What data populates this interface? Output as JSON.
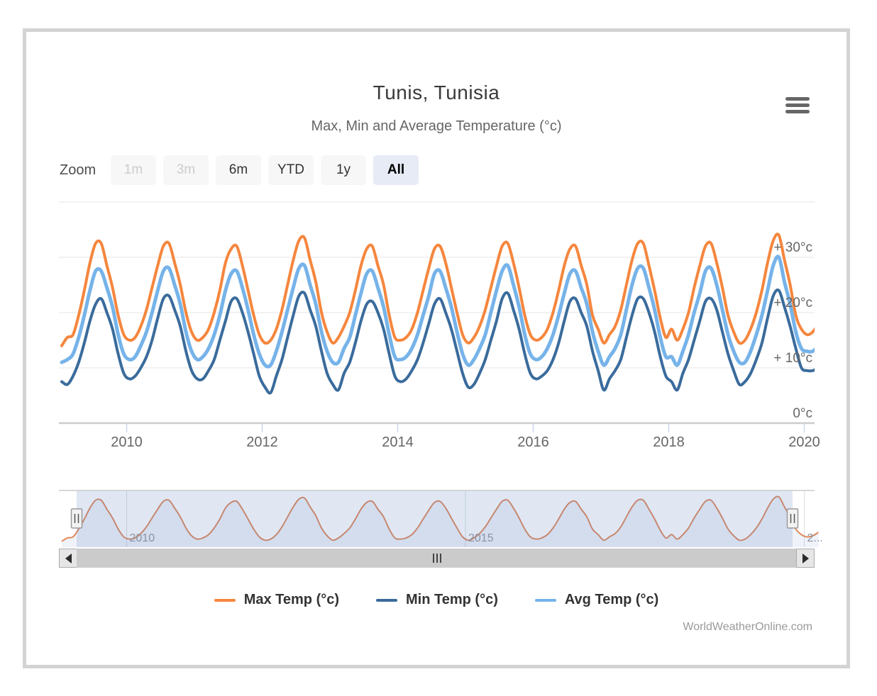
{
  "header": {
    "title": "Tunis, Tunisia",
    "subtitle": "Max, Min and Average Temperature (°c)"
  },
  "menu_icon": "hamburger-menu-icon",
  "toolbar": {
    "label": "Zoom",
    "buttons": [
      {
        "label": "1m",
        "state": "disabled"
      },
      {
        "label": "3m",
        "state": "disabled"
      },
      {
        "label": "6m",
        "state": "normal"
      },
      {
        "label": "YTD",
        "state": "normal"
      },
      {
        "label": "1y",
        "state": "normal"
      },
      {
        "label": "All",
        "state": "active"
      }
    ]
  },
  "chart_data": {
    "type": "line",
    "title": "Tunis, Tunisia",
    "subtitle": "Max, Min and Average Temperature (°c)",
    "x_start_year": 2009,
    "x_frequency": "monthly",
    "x_tick_years": [
      2010,
      2012,
      2014,
      2016,
      2018,
      2020
    ],
    "ylim": [
      0,
      40
    ],
    "yticks": [
      {
        "value": 0,
        "label": "0°c"
      },
      {
        "value": 10,
        "label": "+ 10°c"
      },
      {
        "value": 20,
        "label": "+ 20°c"
      },
      {
        "value": 30,
        "label": "+ 30°c"
      },
      {
        "value": 40,
        "label": ""
      }
    ],
    "grid": true,
    "legend_position": "bottom",
    "colors": {
      "max": "#f5863d",
      "min": "#3a6b9c",
      "avg": "#76b3e9",
      "navigator_line": "#e0875a"
    },
    "series": [
      {
        "name": "Max Temp (°c)",
        "color": "#f5863d",
        "width": 4,
        "values": [
          14,
          15.5,
          16,
          19.5,
          24,
          29,
          32.5,
          32.5,
          28.5,
          24.5,
          19.5,
          16,
          15,
          15.5,
          17.5,
          20.5,
          24.5,
          28.5,
          32,
          32.5,
          29,
          25,
          20,
          16.5,
          15,
          15.5,
          17,
          20,
          24,
          29,
          31.5,
          32,
          28.5,
          24,
          19.5,
          16,
          14.5,
          15,
          17,
          20.5,
          25,
          29.5,
          33,
          33.5,
          29.5,
          25.5,
          20,
          16.5,
          14.5,
          15.5,
          17.5,
          20,
          24,
          28.5,
          31.5,
          32,
          28.5,
          25,
          19.5,
          15.5,
          15,
          15.5,
          17,
          20,
          24,
          28,
          31.5,
          32,
          29,
          24.5,
          20,
          16,
          14.5,
          15.5,
          17.5,
          20.5,
          24.5,
          28.5,
          32,
          32.5,
          29,
          24.5,
          19.5,
          16,
          15,
          15.5,
          17,
          20,
          24,
          28.5,
          31.5,
          32,
          28.5,
          25,
          19.5,
          17,
          14.5,
          16,
          17.5,
          20.5,
          25,
          29.5,
          32.5,
          32.5,
          28.5,
          24,
          19,
          15.5,
          17,
          15,
          17,
          20,
          24.5,
          28.5,
          32,
          32.5,
          29,
          24.5,
          19.5,
          16.5,
          14.5,
          15,
          17,
          20,
          24,
          29,
          33,
          34,
          29.5,
          25,
          19.5,
          17,
          16,
          16.5,
          18
        ]
      },
      {
        "name": "Min Temp (°c)",
        "color": "#3a6b9c",
        "width": 4,
        "values": [
          7.5,
          7,
          8.5,
          11,
          14.5,
          18.5,
          21.5,
          22.5,
          20,
          17,
          12.5,
          9,
          8,
          8.5,
          10,
          12,
          15,
          19,
          22.5,
          23,
          20.5,
          17.5,
          13,
          9.5,
          8,
          8,
          9.5,
          11.5,
          15,
          18.5,
          22,
          22.5,
          20,
          16.5,
          12.5,
          8.5,
          6.5,
          5.5,
          8.5,
          11.5,
          15.5,
          19.5,
          23,
          23.5,
          20.5,
          17.5,
          13,
          9,
          7,
          6,
          9,
          11,
          14.5,
          18.5,
          21.5,
          22,
          20,
          17,
          12.5,
          8.5,
          7.5,
          8,
          9.5,
          11.5,
          14.5,
          18,
          21.5,
          22.5,
          20,
          17,
          13,
          9,
          6.5,
          7,
          9,
          11.5,
          15,
          18.5,
          22.5,
          23.5,
          20.5,
          17,
          12.5,
          9,
          8,
          8.5,
          9.5,
          11.5,
          14.5,
          18.5,
          22,
          22.5,
          20,
          17.5,
          13,
          9.5,
          6,
          8,
          9.5,
          11.5,
          15.5,
          19.5,
          22.5,
          22.5,
          20,
          16.5,
          12,
          8.5,
          7.5,
          6,
          9,
          11.5,
          15,
          18.5,
          22,
          22.5,
          20.5,
          16.5,
          12.5,
          9.5,
          7,
          7.5,
          9,
          11.5,
          14.5,
          19,
          23,
          24,
          21,
          17.5,
          13.5,
          10,
          9.5,
          9.5,
          10
        ]
      },
      {
        "name": "Avg Temp (°c)",
        "color": "#76b3e9",
        "width": 5,
        "values": [
          11,
          11.5,
          12.5,
          15.5,
          19.5,
          24,
          27.5,
          27.5,
          24.5,
          21,
          16,
          12.5,
          11.5,
          12,
          14,
          16.5,
          20,
          24,
          27.5,
          28,
          25,
          21.5,
          16.5,
          13,
          11.5,
          12,
          13.5,
          16,
          19.5,
          24,
          27,
          27.5,
          24.5,
          20.5,
          16,
          12.5,
          10.5,
          10.5,
          13,
          16.5,
          20.5,
          24.5,
          28,
          28.5,
          25,
          21.5,
          16.5,
          13,
          11,
          11,
          13.5,
          15.5,
          19.5,
          23.5,
          27,
          27.5,
          24.5,
          21,
          16,
          12,
          11.5,
          12,
          13.5,
          16,
          19.5,
          23,
          27,
          27.5,
          24.5,
          21,
          16.5,
          12.5,
          10.5,
          11.5,
          13.5,
          16,
          20,
          24,
          27.5,
          28.5,
          25,
          21,
          16,
          12.5,
          11.5,
          12,
          13.5,
          16,
          19.5,
          23.5,
          27,
          27.5,
          24.5,
          21.5,
          16.5,
          13,
          10.5,
          12,
          13.5,
          16,
          20.5,
          25,
          28,
          28,
          24.5,
          20.5,
          15.5,
          12,
          12,
          10.5,
          13,
          16,
          20,
          23.5,
          27.5,
          28,
          25,
          20.5,
          16,
          13,
          11,
          11,
          13,
          16,
          19.5,
          24,
          28.5,
          30,
          25.5,
          21.5,
          16.5,
          13.5,
          13,
          13,
          14
        ]
      }
    ],
    "navigator": {
      "shown_series": "Max Temp (°c)",
      "tick_years": [
        2010,
        2015,
        2020
      ],
      "labels": [
        "2010",
        "2015",
        "2..."
      ],
      "mask_color": "rgba(102,133,194,0.2)"
    }
  },
  "legend": {
    "items": [
      {
        "label": "Max Temp (°c)"
      },
      {
        "label": "Min Temp (°c)"
      },
      {
        "label": "Avg Temp (°c)"
      }
    ]
  },
  "credits": "WorldWeatherOnline.com"
}
